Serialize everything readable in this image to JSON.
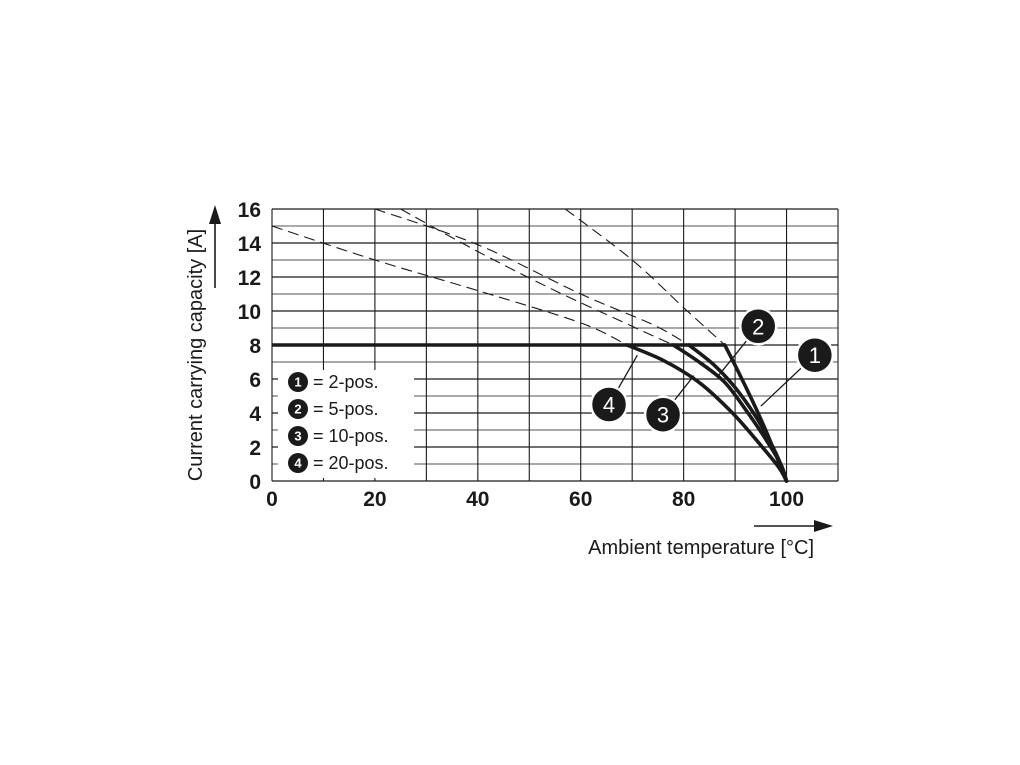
{
  "chart_data": {
    "type": "line",
    "title": "",
    "xlabel": "Ambient temperature [°C]",
    "ylabel": "Current carrying capacity [A]",
    "xlim": [
      0,
      110
    ],
    "ylim": [
      0,
      16
    ],
    "x_ticks": [
      "0",
      "20",
      "40",
      "60",
      "80",
      "100"
    ],
    "y_ticks": [
      "0",
      "2",
      "4",
      "6",
      "8",
      "10",
      "12",
      "14",
      "16"
    ],
    "grid": true,
    "legend_placement": "bottom-left",
    "legend": [
      {
        "num": "1",
        "text": "= 2-pos."
      },
      {
        "num": "2",
        "text": "= 5-pos."
      },
      {
        "num": "3",
        "text": "= 10-pos."
      },
      {
        "num": "4",
        "text": "= 20-pos."
      }
    ],
    "limit": {
      "value": 8,
      "x_start": 0
    },
    "series": [
      {
        "name": "1",
        "solid": [
          [
            88,
            8
          ],
          [
            91,
            6.2
          ],
          [
            94,
            4.3
          ],
          [
            96.5,
            2.6
          ],
          [
            98.5,
            1.1
          ],
          [
            100,
            0
          ]
        ],
        "dashed": [
          [
            57,
            16
          ],
          [
            70,
            13
          ],
          [
            80,
            10.2
          ],
          [
            88,
            8
          ]
        ]
      },
      {
        "name": "2",
        "solid": [
          [
            81,
            8
          ],
          [
            86,
            6.8
          ],
          [
            90,
            5.5
          ],
          [
            94,
            3.8
          ],
          [
            97,
            2.2
          ],
          [
            99,
            0.9
          ],
          [
            100,
            0
          ]
        ],
        "dashed": [
          [
            20,
            16
          ],
          [
            40,
            13.9
          ],
          [
            60,
            11
          ],
          [
            74,
            9.2
          ],
          [
            81,
            8
          ]
        ]
      },
      {
        "name": "3",
        "solid": [
          [
            78,
            8
          ],
          [
            83,
            7.0
          ],
          [
            88,
            5.8
          ],
          [
            92.5,
            4.0
          ],
          [
            96.5,
            2.2
          ],
          [
            99,
            0.9
          ],
          [
            100,
            0
          ]
        ],
        "dashed": [
          [
            25,
            16
          ],
          [
            40,
            13.5
          ],
          [
            55,
            11.2
          ],
          [
            70,
            9.1
          ],
          [
            78,
            8
          ]
        ]
      },
      {
        "name": "4",
        "solid": [
          [
            69,
            8
          ],
          [
            76,
            7.1
          ],
          [
            83,
            5.8
          ],
          [
            89.5,
            4.0
          ],
          [
            95,
            2.1
          ],
          [
            98.5,
            0.8
          ],
          [
            100,
            0
          ]
        ],
        "dashed": [
          [
            0,
            15
          ],
          [
            20,
            13
          ],
          [
            40,
            11.2
          ],
          [
            60,
            9.3
          ],
          [
            69,
            8
          ]
        ]
      }
    ],
    "callouts": [
      {
        "num": "1",
        "at": [
          105.5,
          7.4
        ],
        "to": [
          95,
          4.4
        ]
      },
      {
        "num": "2",
        "at": [
          94.5,
          9.1
        ],
        "to": [
          86.5,
          6.1
        ]
      },
      {
        "num": "3",
        "at": [
          76,
          3.9
        ],
        "to": [
          82,
          6.2
        ]
      },
      {
        "num": "4",
        "at": [
          65.5,
          4.5
        ],
        "to": [
          71,
          7.4
        ]
      }
    ]
  }
}
